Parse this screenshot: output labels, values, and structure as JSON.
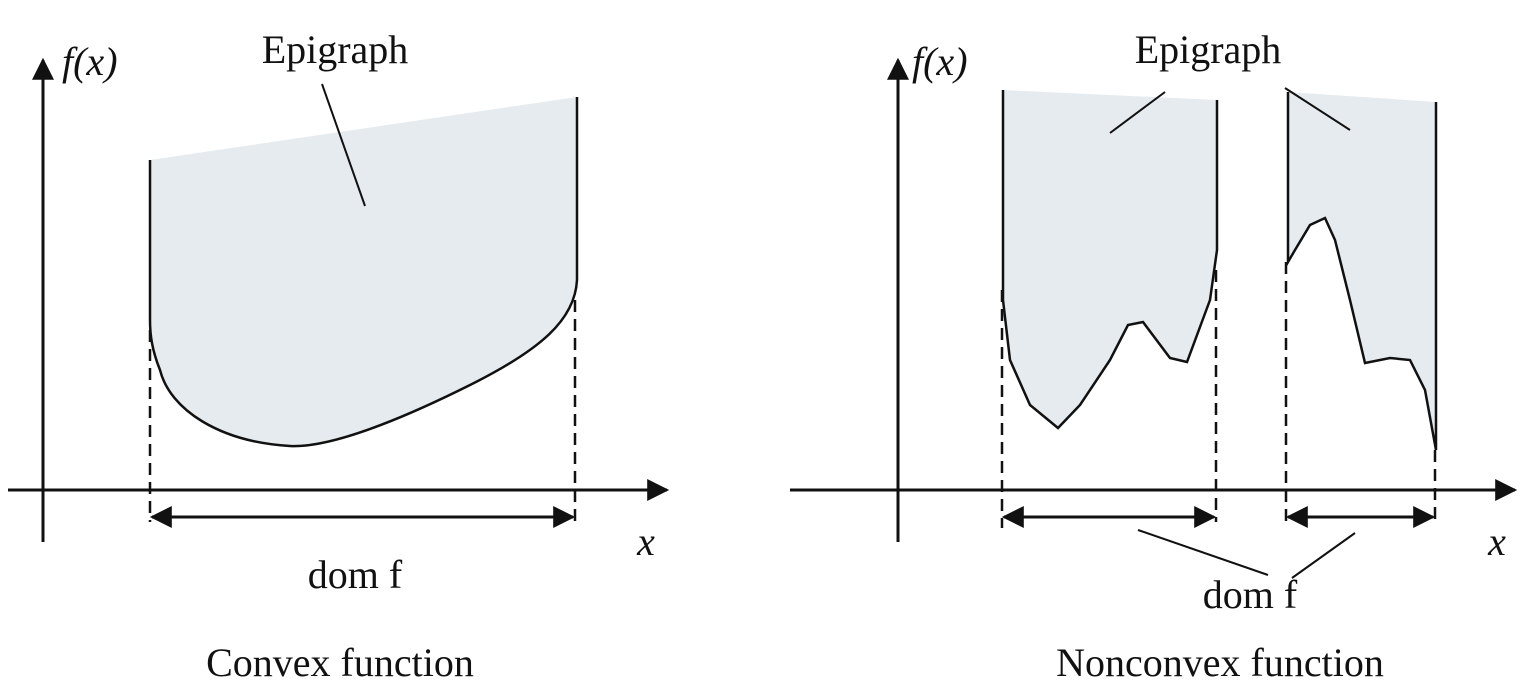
{
  "panels": [
    {
      "y_axis_label": "f(x)",
      "region_label": "Epigraph",
      "x_axis_label": "x",
      "domain_label": "dom f",
      "caption": "Convex function"
    },
    {
      "y_axis_label": "f(x)",
      "region_label": "Epigraph",
      "x_axis_label": "x",
      "domain_label": "dom f",
      "caption": "Nonconvex function"
    }
  ]
}
